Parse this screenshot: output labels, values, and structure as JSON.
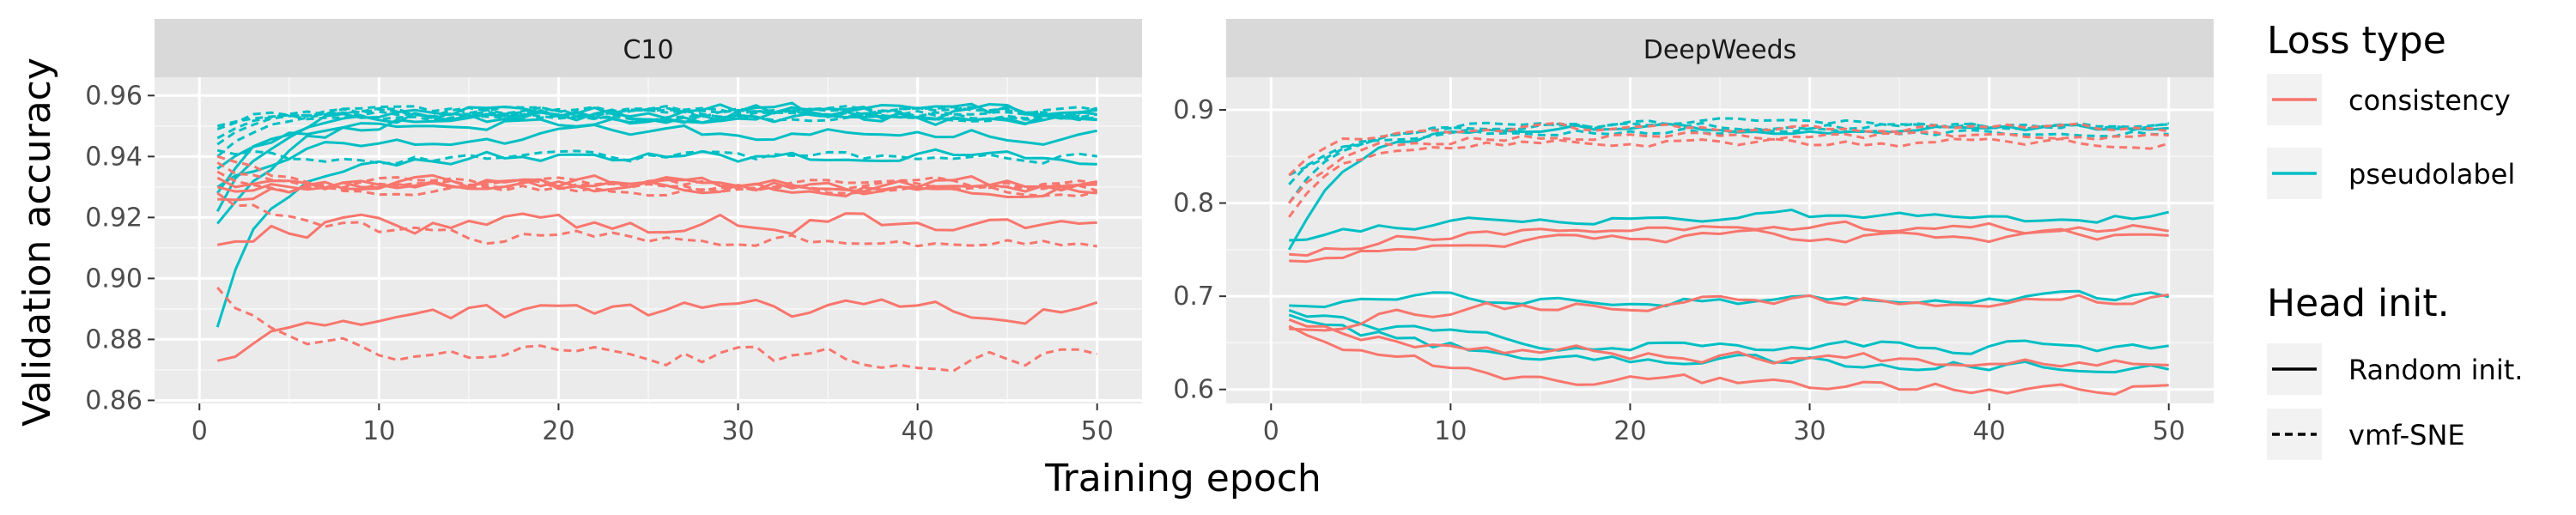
{
  "chart_data": {
    "type": "line",
    "ylabel": "Validation accuracy",
    "xlabel": "Training epoch",
    "x_ticks": [
      0,
      10,
      20,
      30,
      40,
      50
    ],
    "x_tick_labels": [
      "0",
      "10",
      "20",
      "30",
      "40",
      "50"
    ],
    "colors": {
      "consistency": "#F8766D",
      "pseudolabel": "#00BFC4"
    },
    "legend": {
      "loss_title": "Loss type",
      "loss_items": [
        {
          "key": "consistency",
          "label": "consistency"
        },
        {
          "key": "pseudolabel",
          "label": "pseudolabel"
        }
      ],
      "head_title": "Head init.",
      "head_items": [
        {
          "key": "random",
          "label": "Random init."
        },
        {
          "key": "vmf",
          "label": "vmf-SNE"
        }
      ]
    },
    "panels": [
      {
        "title": "C10",
        "ylim": [
          0.859,
          0.966
        ],
        "y_ticks": [
          0.86,
          0.88,
          0.9,
          0.92,
          0.94,
          0.96
        ],
        "y_tick_labels": [
          "0.86",
          "0.88",
          "0.90",
          "0.92",
          "0.94",
          "0.96"
        ],
        "series": [
          {
            "loss": "pseudolabel",
            "head": "random",
            "base": 0.918,
            "plateau": 0.954,
            "tau": 3.5,
            "noise": 0.0025,
            "seed": 11
          },
          {
            "loss": "pseudolabel",
            "head": "random",
            "base": 0.922,
            "plateau": 0.953,
            "tau": 2.0,
            "noise": 0.0025,
            "seed": 12
          },
          {
            "loss": "pseudolabel",
            "head": "random",
            "base": 0.928,
            "plateau": 0.955,
            "tau": 2.5,
            "noise": 0.002,
            "seed": 13
          },
          {
            "loss": "pseudolabel",
            "head": "random",
            "base": 0.936,
            "plateau": 0.952,
            "tau": 3.0,
            "noise": 0.002,
            "seed": 14
          },
          {
            "loss": "pseudolabel",
            "head": "random",
            "base": 0.93,
            "plateau": 0.947,
            "tau": 4.0,
            "noise": 0.002,
            "seed": 15
          },
          {
            "loss": "pseudolabel",
            "head": "random",
            "base": 0.884,
            "plateau": 0.94,
            "tau": 2.5,
            "noise": 0.002,
            "seed": 16
          },
          {
            "loss": "pseudolabel",
            "head": "vmf",
            "base": 0.944,
            "plateau": 0.955,
            "tau": 1.5,
            "noise": 0.0015,
            "seed": 21
          },
          {
            "loss": "pseudolabel",
            "head": "vmf",
            "base": 0.949,
            "plateau": 0.955,
            "tau": 1.5,
            "noise": 0.0012,
            "seed": 22
          },
          {
            "loss": "pseudolabel",
            "head": "vmf",
            "base": 0.946,
            "plateau": 0.954,
            "tau": 1.5,
            "noise": 0.0012,
            "seed": 23
          },
          {
            "loss": "pseudolabel",
            "head": "vmf",
            "base": 0.94,
            "plateau": 0.954,
            "tau": 2.0,
            "noise": 0.0015,
            "seed": 24
          },
          {
            "loss": "pseudolabel",
            "head": "vmf",
            "base": 0.942,
            "plateau": 0.94,
            "tau": 1.5,
            "noise": 0.0015,
            "seed": 25
          },
          {
            "loss": "pseudolabel",
            "head": "vmf",
            "base": 0.95,
            "plateau": 0.953,
            "tau": 1.5,
            "noise": 0.0012,
            "seed": 26
          },
          {
            "loss": "consistency",
            "head": "random",
            "base": 0.926,
            "plateau": 0.931,
            "tau": 2.0,
            "noise": 0.002,
            "seed": 31
          },
          {
            "loss": "consistency",
            "head": "random",
            "base": 0.933,
            "plateau": 0.93,
            "tau": 2.0,
            "noise": 0.002,
            "seed": 32
          },
          {
            "loss": "consistency",
            "head": "random",
            "base": 0.93,
            "plateau": 0.93,
            "tau": 2.0,
            "noise": 0.002,
            "seed": 33
          },
          {
            "loss": "consistency",
            "head": "random",
            "base": 0.911,
            "plateau": 0.918,
            "tau": 2.0,
            "noise": 0.003,
            "seed": 34
          },
          {
            "loss": "consistency",
            "head": "random",
            "base": 0.873,
            "plateau": 0.889,
            "tau": 6.0,
            "noise": 0.003,
            "seed": 35
          },
          {
            "loss": "consistency",
            "head": "vmf",
            "base": 0.94,
            "plateau": 0.93,
            "tau": 3.0,
            "noise": 0.0015,
            "seed": 41
          },
          {
            "loss": "consistency",
            "head": "vmf",
            "base": 0.938,
            "plateau": 0.931,
            "tau": 3.0,
            "noise": 0.0015,
            "seed": 42
          },
          {
            "loss": "consistency",
            "head": "vmf",
            "base": 0.935,
            "plateau": 0.929,
            "tau": 3.0,
            "noise": 0.0015,
            "seed": 43
          },
          {
            "loss": "consistency",
            "head": "vmf",
            "base": 0.928,
            "plateau": 0.913,
            "tau": 5.0,
            "noise": 0.002,
            "seed": 44
          },
          {
            "loss": "consistency",
            "head": "vmf",
            "base": 0.897,
            "plateau": 0.874,
            "tau": 4.0,
            "noise": 0.003,
            "seed": 45
          }
        ]
      },
      {
        "title": "DeepWeeds",
        "ylim": [
          0.585,
          0.935
        ],
        "y_ticks": [
          0.6,
          0.7,
          0.8,
          0.9
        ],
        "y_tick_labels": [
          "0.6",
          "0.7",
          "0.8",
          "0.9"
        ],
        "series": [
          {
            "loss": "pseudolabel",
            "head": "vmf",
            "base": 0.8,
            "plateau": 0.885,
            "tau": 3.0,
            "noise": 0.004,
            "seed": 51
          },
          {
            "loss": "pseudolabel",
            "head": "vmf",
            "base": 0.82,
            "plateau": 0.882,
            "tau": 3.0,
            "noise": 0.004,
            "seed": 52
          },
          {
            "loss": "pseudolabel",
            "head": "vmf",
            "base": 0.83,
            "plateau": 0.878,
            "tau": 3.0,
            "noise": 0.004,
            "seed": 53
          },
          {
            "loss": "pseudolabel",
            "head": "random",
            "base": 0.75,
            "plateau": 0.88,
            "tau": 3.0,
            "noise": 0.004,
            "seed": 54
          },
          {
            "loss": "pseudolabel",
            "head": "random",
            "base": 0.76,
            "plateau": 0.785,
            "tau": 5.0,
            "noise": 0.005,
            "seed": 55
          },
          {
            "loss": "pseudolabel",
            "head": "random",
            "base": 0.69,
            "plateau": 0.697,
            "tau": 3.0,
            "noise": 0.005,
            "seed": 56
          },
          {
            "loss": "pseudolabel",
            "head": "random",
            "base": 0.685,
            "plateau": 0.645,
            "tau": 8.0,
            "noise": 0.006,
            "seed": 57
          },
          {
            "loss": "pseudolabel",
            "head": "random",
            "base": 0.68,
            "plateau": 0.628,
            "tau": 9.0,
            "noise": 0.006,
            "seed": 58
          },
          {
            "loss": "consistency",
            "head": "vmf",
            "base": 0.83,
            "plateau": 0.88,
            "tau": 2.5,
            "noise": 0.004,
            "seed": 61
          },
          {
            "loss": "consistency",
            "head": "vmf",
            "base": 0.8,
            "plateau": 0.872,
            "tau": 3.0,
            "noise": 0.004,
            "seed": 62
          },
          {
            "loss": "consistency",
            "head": "vmf",
            "base": 0.785,
            "plateau": 0.865,
            "tau": 3.0,
            "noise": 0.004,
            "seed": 63
          },
          {
            "loss": "consistency",
            "head": "random",
            "base": 0.745,
            "plateau": 0.773,
            "tau": 6.0,
            "noise": 0.005,
            "seed": 64
          },
          {
            "loss": "consistency",
            "head": "random",
            "base": 0.738,
            "plateau": 0.763,
            "tau": 6.0,
            "noise": 0.005,
            "seed": 65
          },
          {
            "loss": "consistency",
            "head": "random",
            "base": 0.665,
            "plateau": 0.695,
            "tau": 8.0,
            "noise": 0.006,
            "seed": 66
          },
          {
            "loss": "consistency",
            "head": "random",
            "base": 0.675,
            "plateau": 0.632,
            "tau": 10.0,
            "noise": 0.006,
            "seed": 67
          },
          {
            "loss": "consistency",
            "head": "random",
            "base": 0.668,
            "plateau": 0.603,
            "tau": 8.0,
            "noise": 0.006,
            "seed": 68
          }
        ]
      }
    ]
  }
}
